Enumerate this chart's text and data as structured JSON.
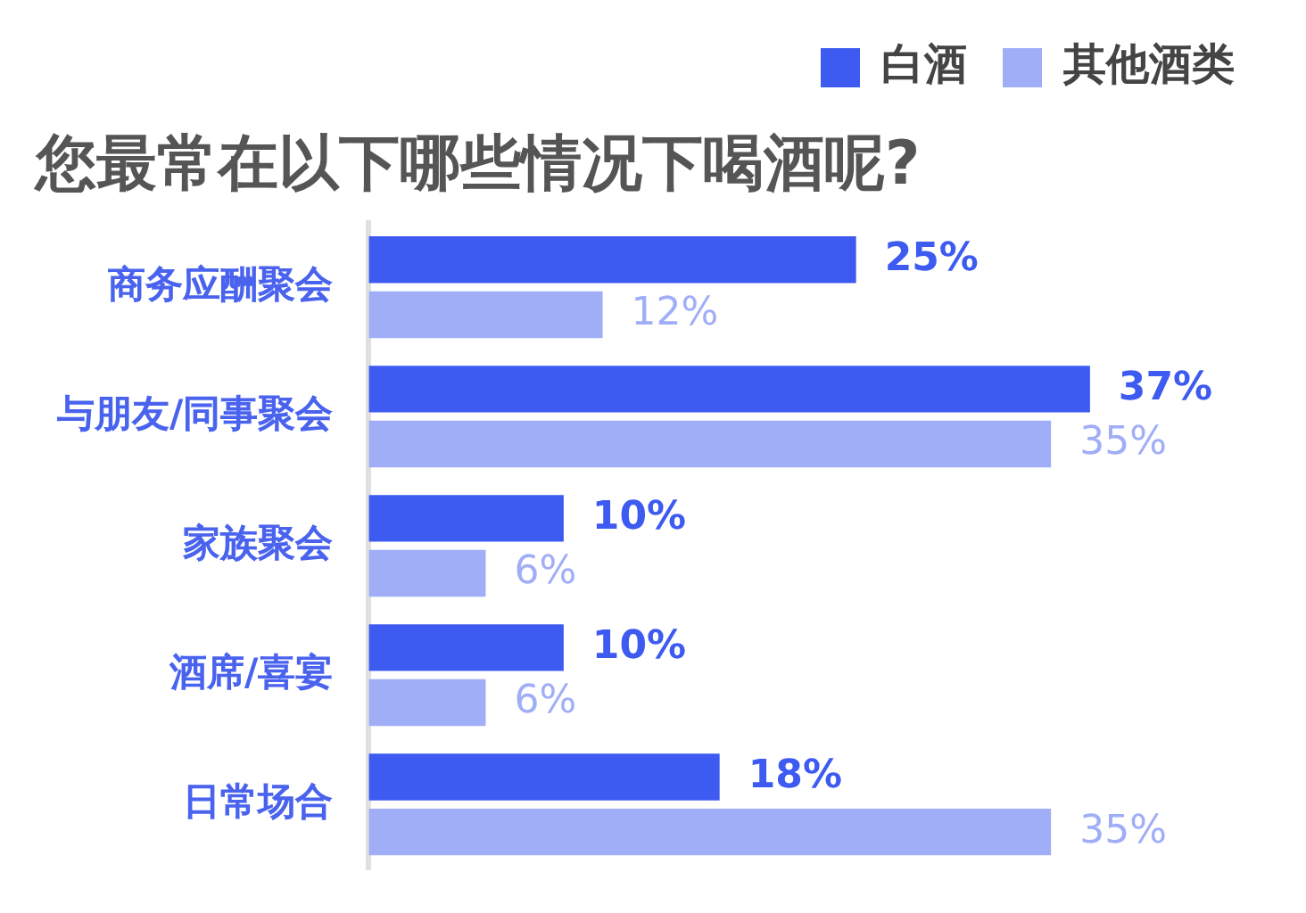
{
  "chart_data": {
    "type": "bar",
    "orientation": "horizontal",
    "title": "您最常在以下哪些情况下喝酒呢?",
    "categories": [
      "商务应酬聚会",
      "与朋友/同事聚会",
      "家族聚会",
      "酒席/喜宴",
      "日常场合"
    ],
    "series": [
      {
        "name": "白酒",
        "color": "#3d5af1",
        "values": [
          25,
          37,
          10,
          10,
          18
        ],
        "value_labels": [
          "25%",
          "37%",
          "10%",
          "10%",
          "18%"
        ]
      },
      {
        "name": "其他酒类",
        "color": "#a0aef7",
        "values": [
          12,
          35,
          6,
          6,
          35
        ],
        "value_labels": [
          "12%",
          "35%",
          "6%",
          "6%",
          "35%"
        ]
      }
    ],
    "legend": "top right"
  }
}
